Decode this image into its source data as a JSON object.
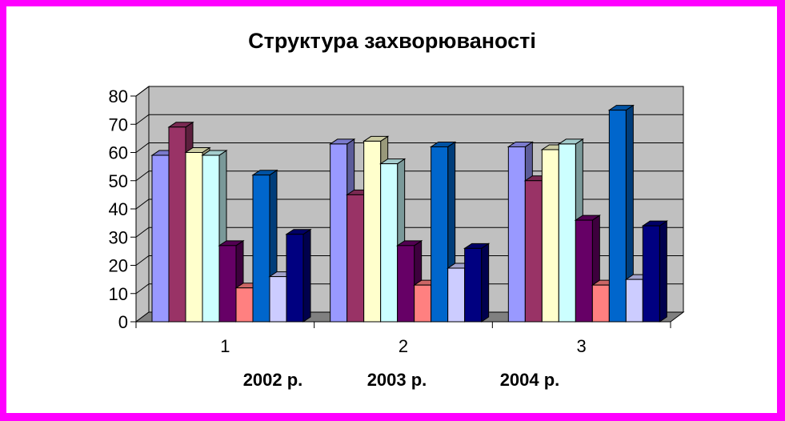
{
  "chart_data": {
    "type": "bar",
    "title": "Структура захворюваності",
    "categories": [
      "1",
      "2",
      "3"
    ],
    "category_sublabels": [
      "2002 р.",
      "2003 р.",
      "2004 р."
    ],
    "ylim": [
      0,
      80
    ],
    "yticks": [
      "0",
      "10",
      "20",
      "30",
      "40",
      "50",
      "60",
      "70",
      "80"
    ],
    "grid": true,
    "series": [
      {
        "color": "#9999ff",
        "values": [
          59,
          63,
          62
        ]
      },
      {
        "color": "#993366",
        "values": [
          69,
          45,
          50
        ]
      },
      {
        "color": "#ffffcc",
        "values": [
          60,
          64,
          61
        ]
      },
      {
        "color": "#ccffff",
        "values": [
          59,
          56,
          63
        ]
      },
      {
        "color": "#660066",
        "values": [
          27,
          27,
          36
        ]
      },
      {
        "color": "#ff8080",
        "values": [
          12,
          13,
          13
        ]
      },
      {
        "color": "#0066cc",
        "values": [
          52,
          62,
          75
        ]
      },
      {
        "color": "#ccccff",
        "values": [
          16,
          19,
          15
        ]
      },
      {
        "color": "#000080",
        "values": [
          31,
          26,
          34
        ]
      }
    ]
  },
  "frame_color": "#ff00ff",
  "plot_wall_color": "#c0c0c0",
  "plot_floor_color": "#808080"
}
